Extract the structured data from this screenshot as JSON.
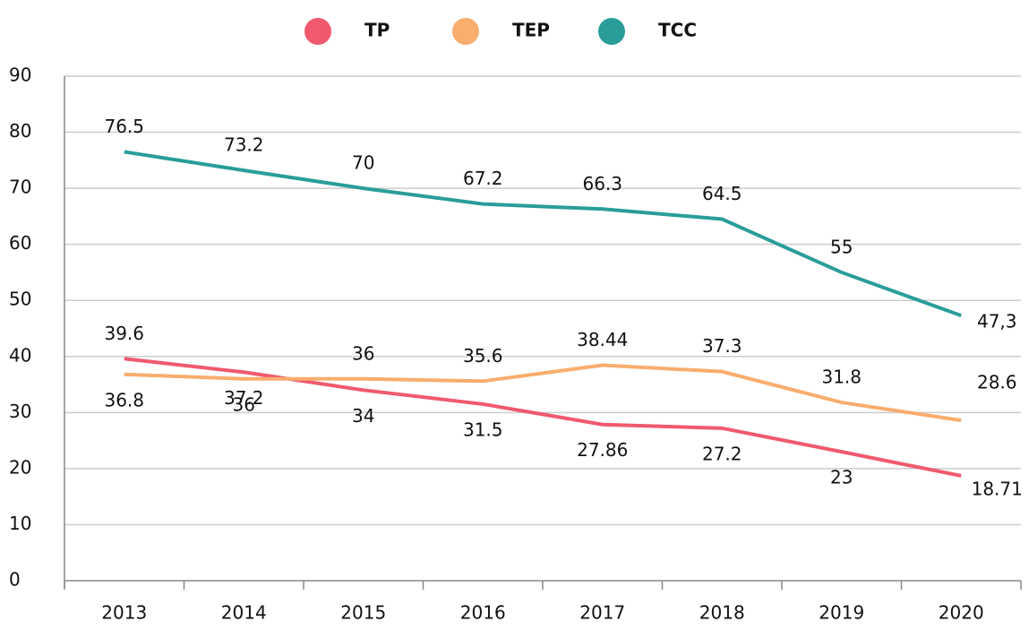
{
  "chart_data": {
    "type": "line",
    "categories": [
      "2013",
      "2014",
      "2015",
      "2016",
      "2017",
      "2018",
      "2019",
      "2020"
    ],
    "series": [
      {
        "name": "TP",
        "color": "#f0596e",
        "values": [
          39.6,
          37.2,
          34,
          31.5,
          27.86,
          27.2,
          23,
          18.71
        ]
      },
      {
        "name": "TEP",
        "color": "#f9ad6e",
        "values": [
          36.8,
          36,
          36,
          35.6,
          38.44,
          37.3,
          31.8,
          28.6
        ]
      },
      {
        "name": "TCC",
        "color": "#2a9d9a",
        "values": [
          76.5,
          73.2,
          70,
          67.2,
          66.3,
          64.5,
          55,
          47.3
        ],
        "value_labels": [
          "76.5",
          "73.2",
          "70",
          "67.2",
          "66.3",
          "64.5",
          "55",
          "47,3"
        ]
      }
    ],
    "ylim": [
      0,
      90
    ],
    "yticks": [
      0,
      10,
      20,
      30,
      40,
      50,
      60,
      70,
      80,
      90
    ],
    "grid": true,
    "legend": "top"
  }
}
